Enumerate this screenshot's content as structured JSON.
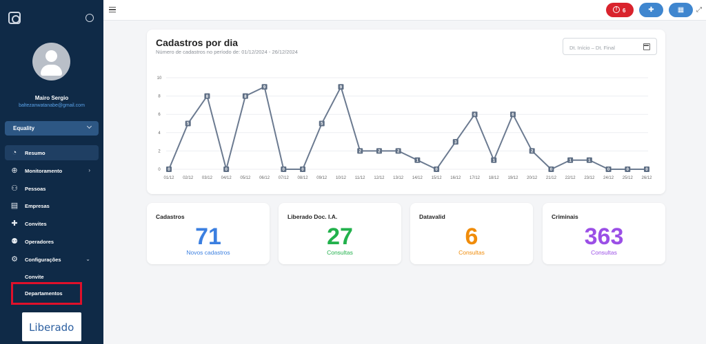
{
  "sidebar": {
    "user": {
      "name": "Mairo Sergio",
      "email": "baltezanwatanabe@gmail.com"
    },
    "org_select": {
      "value": "Equality"
    },
    "items": [
      {
        "label": "Resumo",
        "icon": "pie-chart-icon",
        "active": true
      },
      {
        "label": "Monitoramento",
        "icon": "globe-icon",
        "has_children": true
      },
      {
        "label": "Pessoas",
        "icon": "people-icon"
      },
      {
        "label": "Empresas",
        "icon": "store-icon"
      },
      {
        "label": "Convites",
        "icon": "add-person-icon"
      },
      {
        "label": "Operadores",
        "icon": "group-icon"
      },
      {
        "label": "Configurações",
        "icon": "gear-icon",
        "has_children": true,
        "expanded": true
      }
    ],
    "sub_items": [
      {
        "label": "Convite"
      },
      {
        "label": "Departamentos"
      }
    ],
    "logo_text": "Liberado"
  },
  "topbar": {
    "alert_count": "6",
    "alert_icon": "alert-circle-icon",
    "buttons": [
      {
        "icon": "add-person-icon"
      },
      {
        "icon": "cart-icon"
      }
    ]
  },
  "chart": {
    "title": "Cadastros por dia",
    "subtitle": "Número de cadastros no período de: 01/12/2024 - 26/12/2024",
    "date_placeholder": "Dt. Início – Dt. Final"
  },
  "chart_data": {
    "type": "line",
    "categories": [
      "01/12",
      "02/12",
      "03/12",
      "04/12",
      "05/12",
      "06/12",
      "07/12",
      "08/12",
      "09/12",
      "10/12",
      "11/12",
      "12/12",
      "13/12",
      "14/12",
      "15/12",
      "16/12",
      "17/12",
      "18/12",
      "19/12",
      "20/12",
      "21/12",
      "22/12",
      "23/12",
      "24/12",
      "25/12",
      "26/12"
    ],
    "values": [
      0,
      5,
      8,
      0,
      8,
      9,
      0,
      0,
      5,
      9,
      2,
      2,
      2,
      1,
      0,
      3,
      6,
      1,
      6,
      2,
      0,
      1,
      1,
      0,
      0,
      0
    ],
    "yticks": [
      0,
      2,
      4,
      6,
      8,
      10
    ],
    "ylim": [
      0,
      10
    ],
    "grid": true,
    "color": "#6b7a90"
  },
  "stats": [
    {
      "title": "Cadastros",
      "value": "71",
      "label": "Novos cadastros",
      "color": "#3b7fe0"
    },
    {
      "title": "Liberado Doc. I.A.",
      "value": "27",
      "label": "Consultas",
      "color": "#22b14c"
    },
    {
      "title": "Datavalid",
      "value": "6",
      "label": "Consultas",
      "color": "#f08c0a"
    },
    {
      "title": "Criminais",
      "value": "363",
      "label": "Consultas",
      "color": "#9b4fe6"
    }
  ]
}
